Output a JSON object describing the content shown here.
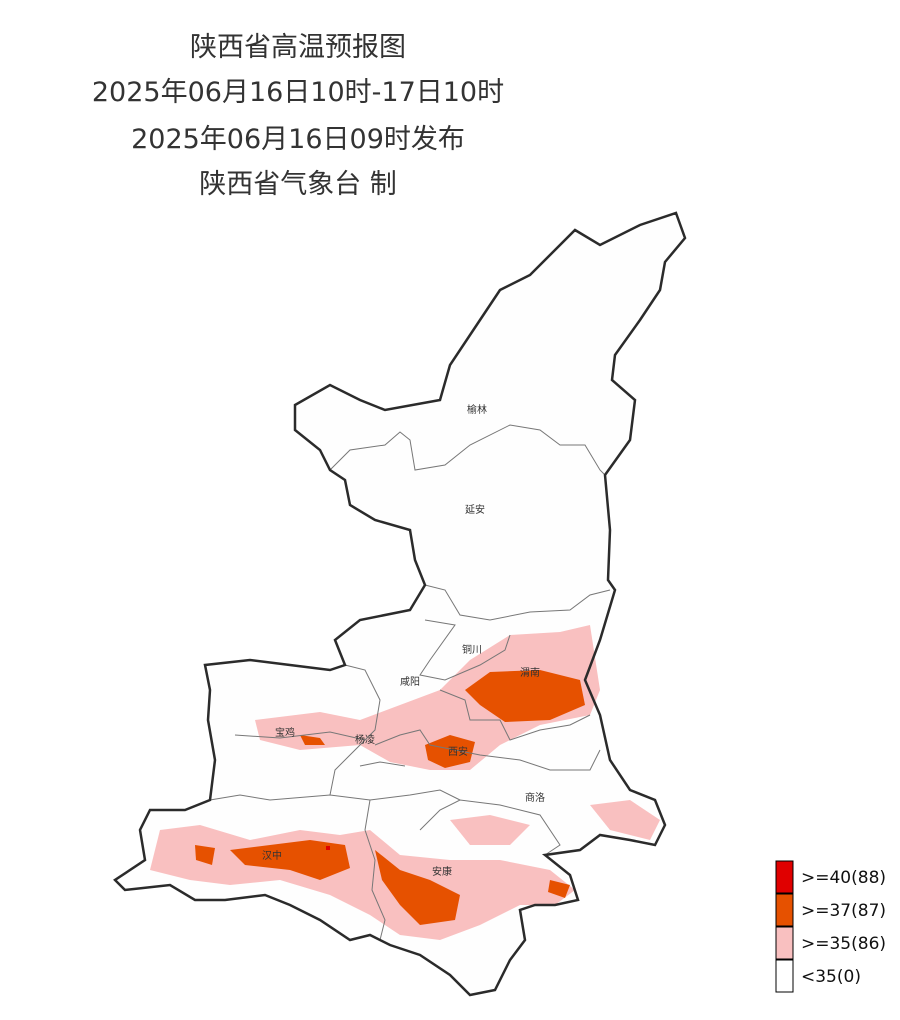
{
  "header": {
    "title": "陕西省高温预报图",
    "period": "2025年06月16日10时-17日10时",
    "issued": "2025年06月16日09时发布",
    "producer": "陕西省气象台 制"
  },
  "map": {
    "cities": [
      {
        "label": "榆林"
      },
      {
        "label": "延安"
      },
      {
        "label": "铜川"
      },
      {
        "label": "咸阳"
      },
      {
        "label": "渭南"
      },
      {
        "label": "宝鸡"
      },
      {
        "label": "杨凌"
      },
      {
        "label": "西安"
      },
      {
        "label": "商洛"
      },
      {
        "label": "汉中"
      },
      {
        "label": "安康"
      }
    ]
  },
  "legend": {
    "items": [
      {
        "label": ">=40(88)",
        "color": "#e00000"
      },
      {
        "label": ">=37(87)",
        "color": "#e65100"
      },
      {
        "label": ">=35(86)",
        "color": "#f9c0c0"
      },
      {
        "label": "<35(0)",
        "color": "#ffffff"
      }
    ]
  }
}
